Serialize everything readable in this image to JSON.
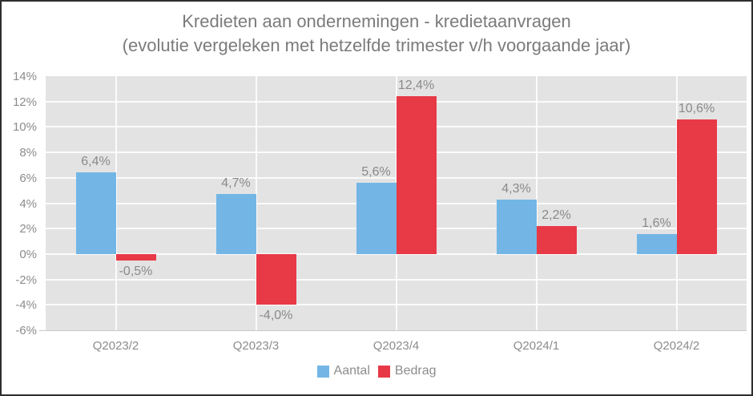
{
  "title": {
    "line1": "Kredieten aan ondernemingen - kredietaanvragen",
    "line2": "(evolutie vergeleken met hetzelfde trimester v/h voorgaande jaar)"
  },
  "chart_data": {
    "type": "bar",
    "categories": [
      "Q2023/2",
      "Q2023/3",
      "Q2023/4",
      "Q2024/1",
      "Q2024/2"
    ],
    "series": [
      {
        "name": "Aantal",
        "color": "#73b6e6",
        "values": [
          6.4,
          4.7,
          5.6,
          4.3,
          1.6
        ],
        "labels": [
          "6,4%",
          "4,7%",
          "5,6%",
          "4,3%",
          "1,6%"
        ]
      },
      {
        "name": "Bedrag",
        "color": "#e83947",
        "values": [
          -0.5,
          -4.0,
          12.4,
          2.2,
          10.6
        ],
        "labels": [
          "-0,5%",
          "-4,0%",
          "12,4%",
          "2,2%",
          "10,6%"
        ]
      }
    ],
    "ylim": [
      -6,
      14
    ],
    "ytick_step": 2,
    "ytick_labels": [
      "14%",
      "12%",
      "10%",
      "8%",
      "6%",
      "4%",
      "2%",
      "0%",
      "-2%",
      "-4%",
      "-6%"
    ],
    "grid": true,
    "legend_position": "bottom",
    "colors": {
      "plot_background": "#e3e3e3",
      "gridline": "#ffffff",
      "axis_line": "#c9c9c9",
      "text": "#8c8c8c",
      "title_text": "#7b7b7b",
      "border": "#2e2e2e"
    }
  }
}
